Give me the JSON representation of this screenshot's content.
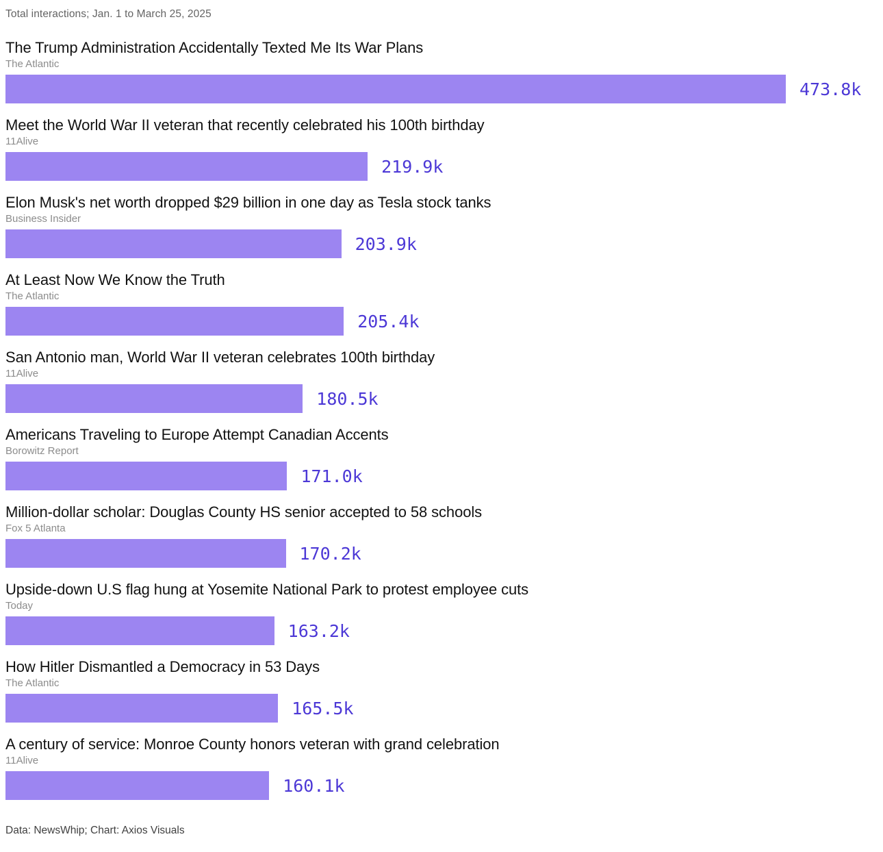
{
  "chart_data": {
    "type": "bar",
    "orientation": "horizontal",
    "subtitle": "Total interactions; Jan. 1 to March 25, 2025",
    "credit": "Data: NewsWhip; Chart: Axios Visuals",
    "value_unit": "thousands of interactions",
    "xlim": [
      0,
      473.8
    ],
    "max_value": 473.8,
    "grid": false,
    "legend": false,
    "colors": {
      "bar": "#9c85f1",
      "value_text": "#4c38d6",
      "headline": "#121212",
      "source": "#8c8c8c",
      "subtitle": "#646464",
      "credit": "#404040"
    },
    "entries": [
      {
        "headline": "The Trump Administration Accidentally Texted Me Its War Plans",
        "source": "The Atlantic",
        "value": 473.8,
        "label": "473.8k"
      },
      {
        "headline": "Meet the World War II veteran that recently celebrated his 100th birthday",
        "source": "11Alive",
        "value": 219.9,
        "label": "219.9k"
      },
      {
        "headline": "Elon Musk's net worth dropped $29 billion in one day as Tesla stock tanks",
        "source": "Business Insider",
        "value": 203.9,
        "label": "203.9k"
      },
      {
        "headline": "At Least Now We Know the Truth",
        "source": "The Atlantic",
        "value": 205.4,
        "label": "205.4k"
      },
      {
        "headline": "San Antonio man, World War II veteran celebrates 100th birthday",
        "source": "11Alive",
        "value": 180.5,
        "label": "180.5k"
      },
      {
        "headline": "Americans Traveling to Europe Attempt Canadian Accents",
        "source": "Borowitz Report",
        "value": 171.0,
        "label": "171.0k"
      },
      {
        "headline": "Million-dollar scholar: Douglas County HS senior accepted to 58 schools",
        "source": "Fox 5 Atlanta",
        "value": 170.2,
        "label": "170.2k"
      },
      {
        "headline": "Upside-down U.S flag hung at Yosemite National Park to protest employee cuts",
        "source": "Today",
        "value": 163.2,
        "label": "163.2k"
      },
      {
        "headline": "How Hitler Dismantled a Democracy in 53 Days",
        "source": "The Atlantic",
        "value": 165.5,
        "label": "165.5k"
      },
      {
        "headline": "A century of service: Monroe County honors veteran with grand celebration",
        "source": "11Alive",
        "value": 160.1,
        "label": "160.1k"
      }
    ]
  }
}
